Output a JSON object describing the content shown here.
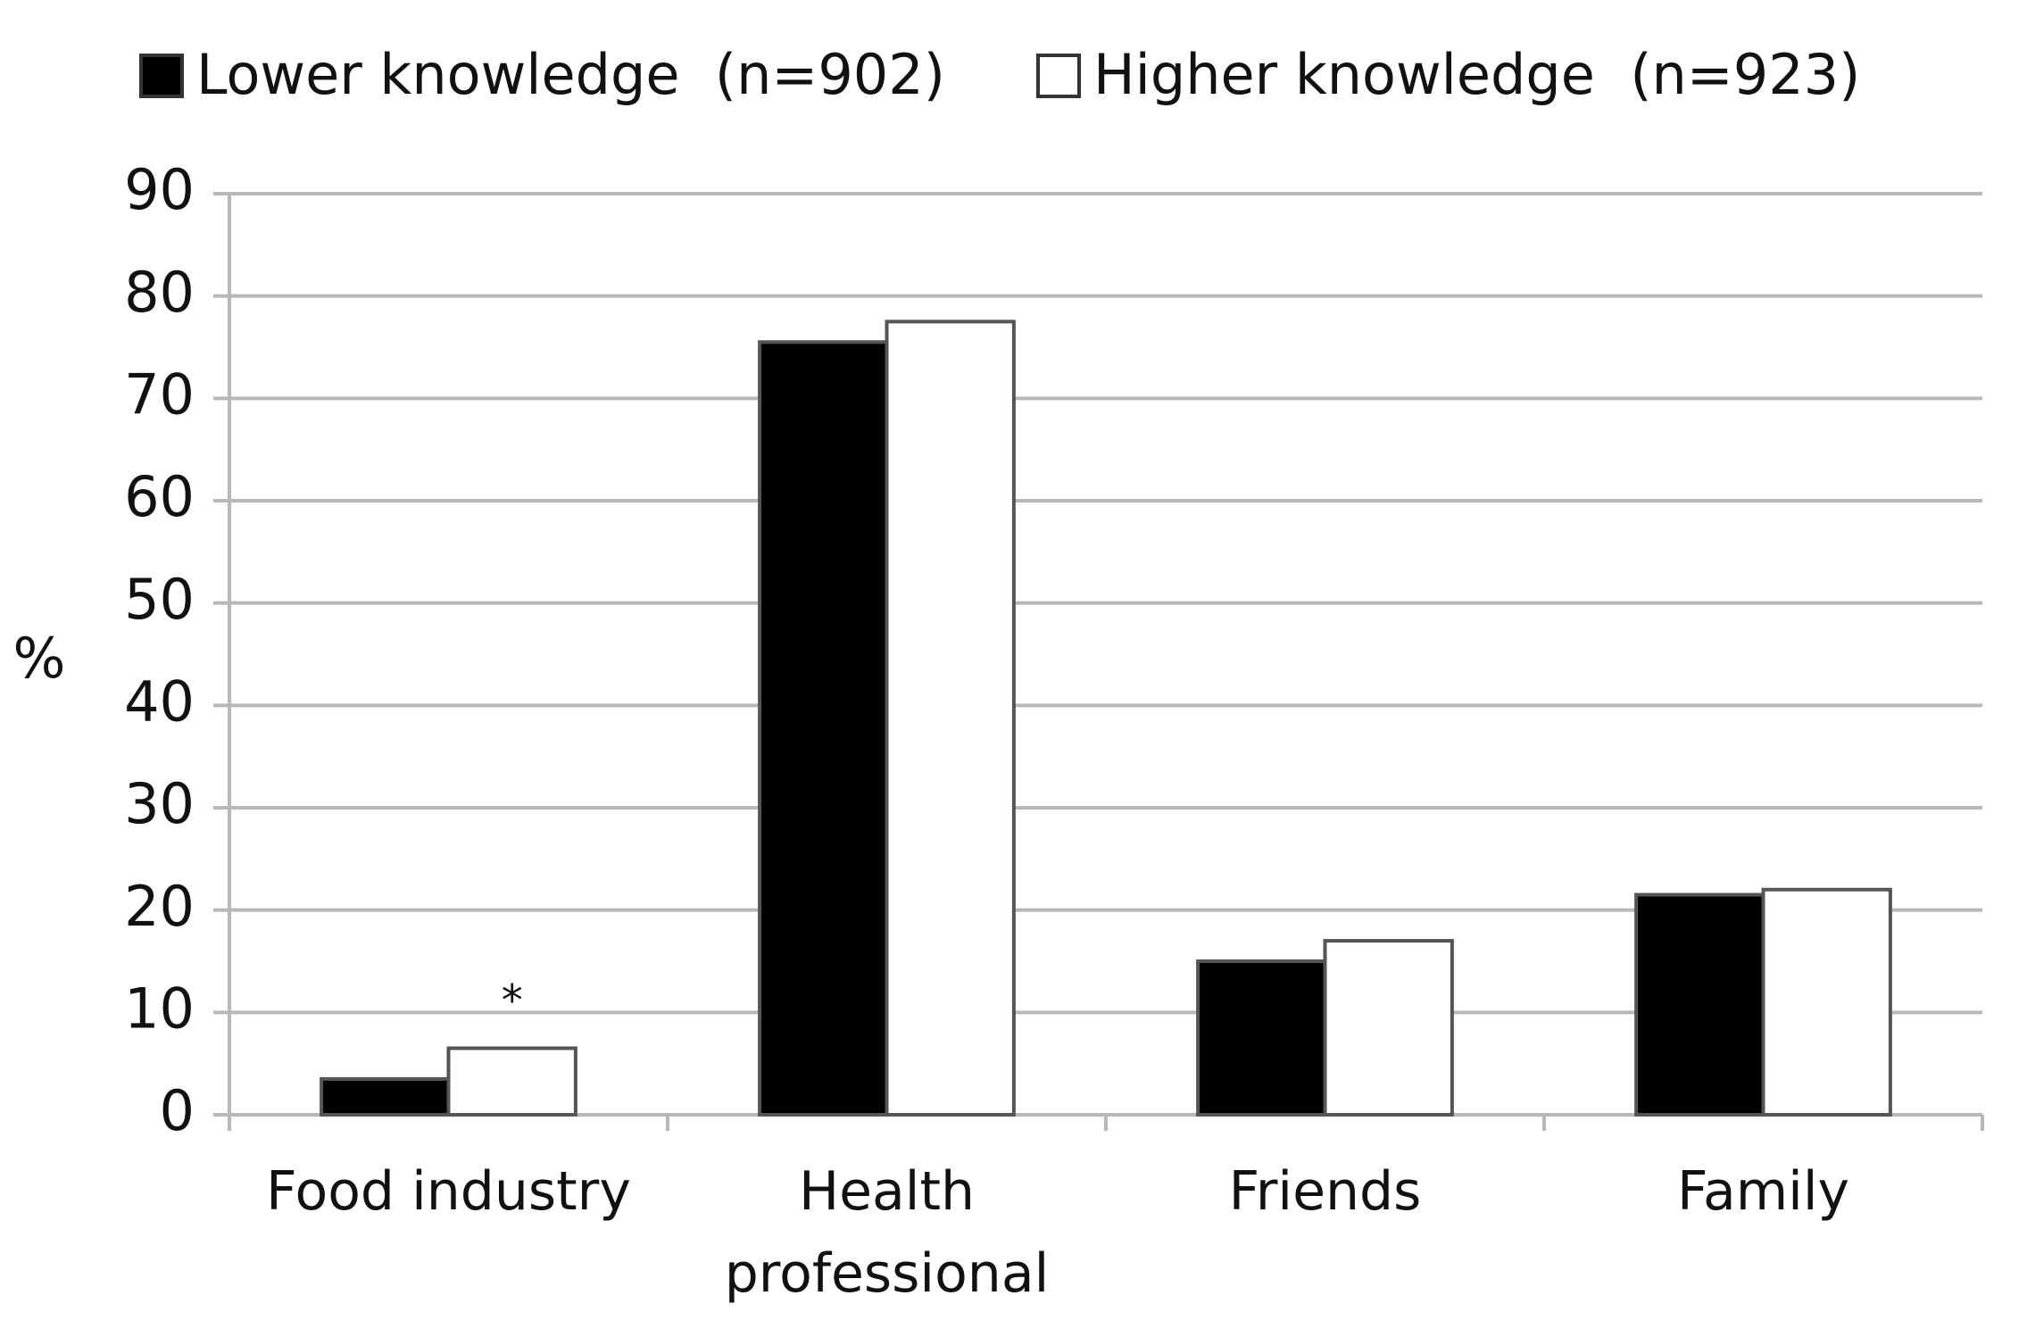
{
  "chart_data": {
    "type": "bar",
    "categories": [
      "Food industry",
      "Health professional",
      "Friends",
      "Family"
    ],
    "series": [
      {
        "name": "Lower knowledge  (n=902)",
        "color": "#000000",
        "values": [
          3.5,
          75.5,
          15,
          21.5
        ]
      },
      {
        "name": "Higher knowledge  (n=923)",
        "color": "#ffffff",
        "values": [
          6.5,
          77.5,
          17,
          22
        ]
      }
    ],
    "ylabel": "%",
    "annotation": "*",
    "ylim": [
      0,
      90
    ],
    "yticks": [
      0,
      10,
      20,
      30,
      40,
      50,
      60,
      70,
      80,
      90
    ],
    "grid": true
  }
}
